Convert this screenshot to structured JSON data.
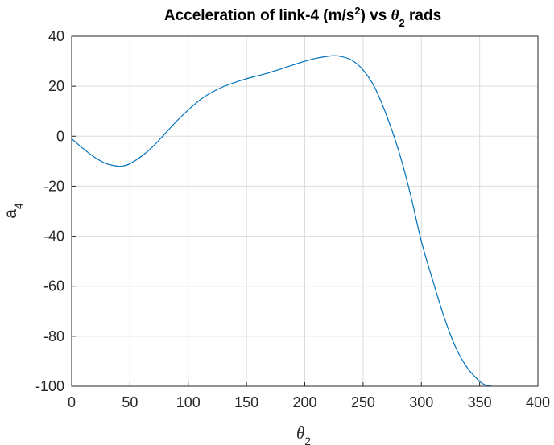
{
  "chart_data": {
    "type": "line",
    "title": {
      "prefix": "Acceleration of link-4 (m/s",
      "sup": "2",
      "middle": ") vs ",
      "theta": "θ",
      "sub": "2",
      "suffix": " rads"
    },
    "xlabel": {
      "base": "θ",
      "sub": "2"
    },
    "ylabel": {
      "base": "a",
      "sub": "4"
    },
    "xlim": [
      0,
      400
    ],
    "ylim": [
      -100,
      40
    ],
    "xticks": [
      0,
      50,
      100,
      150,
      200,
      250,
      300,
      350,
      400
    ],
    "yticks": [
      40,
      20,
      0,
      -20,
      -40,
      -60,
      -80,
      -100
    ],
    "xtick_labels": [
      "0",
      "50",
      "100",
      "150",
      "200",
      "250",
      "300",
      "350",
      "400"
    ],
    "ytick_labels": [
      "40",
      "20",
      "0",
      "-20",
      "-40",
      "-60",
      "-80",
      "-100"
    ],
    "grid": true,
    "line_color": "#0072BD",
    "series": [
      {
        "x": [
          0,
          10,
          20,
          30,
          40,
          45,
          50,
          60,
          70,
          80,
          90,
          100,
          110,
          120,
          130,
          140,
          150,
          160,
          170,
          180,
          190,
          200,
          210,
          220,
          225,
          230,
          240,
          250,
          260,
          270,
          280,
          290,
          300,
          310,
          320,
          330,
          340,
          350,
          355,
          360
        ],
        "y": [
          -1,
          -5,
          -8.5,
          -11,
          -12,
          -11.8,
          -11,
          -8,
          -4,
          1,
          6,
          10.5,
          14.5,
          17.5,
          19.8,
          21.5,
          23,
          24.2,
          25.5,
          27,
          28.5,
          30,
          31.2,
          32,
          32.2,
          32,
          30.5,
          26.5,
          19.5,
          8.5,
          -5,
          -22,
          -42,
          -58,
          -73,
          -85,
          -93,
          -98,
          -99.5,
          -100
        ]
      }
    ]
  }
}
